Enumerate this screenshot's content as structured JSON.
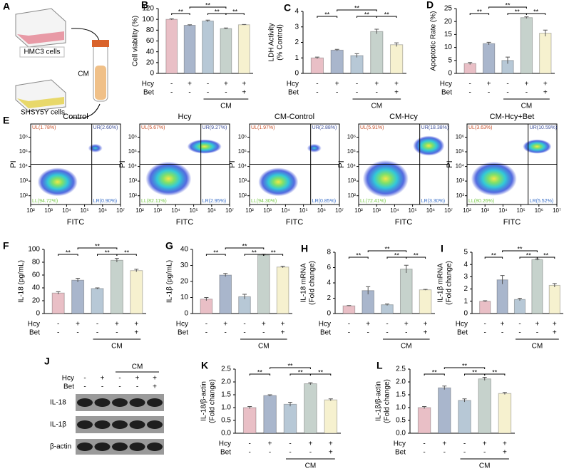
{
  "panel_a": {
    "panel": "A",
    "top_cells": "HMC3 cells",
    "medium": "CM",
    "bottom_cells": "SHSY5Y cells"
  },
  "chart_data": [
    {
      "type": "bar",
      "panel": "B",
      "ylabel": [
        "Cell viability (%)"
      ],
      "categories": [
        null,
        null,
        null,
        null,
        null
      ],
      "values": [
        100,
        89,
        97,
        83,
        90
      ],
      "errors": [
        1,
        1,
        1.5,
        1,
        0.5
      ],
      "colors": [
        "#e9bfc6",
        "#a9b6cc",
        "#b7c8d6",
        "#c6d2cc",
        "#f6f1cf"
      ],
      "ylim": [
        0,
        120
      ],
      "yticks": [
        0,
        20,
        40,
        60,
        80,
        100,
        120
      ],
      "annotations": [
        {
          "text": "**",
          "bars": [
            0,
            1
          ]
        },
        {
          "text": "**",
          "bars": [
            1,
            3
          ]
        },
        {
          "text": "**",
          "bars": [
            2,
            3
          ]
        },
        {
          "text": "**",
          "bars": [
            3,
            4
          ]
        }
      ],
      "conditions": [
        {
          "name": "Hcy",
          "signs": [
            "-",
            "+",
            "-",
            "+",
            "+"
          ]
        },
        {
          "name": "Bet",
          "signs": [
            "-",
            "-",
            "-",
            "-",
            "+"
          ]
        }
      ],
      "group": "CM"
    },
    {
      "type": "bar",
      "panel": "C",
      "ylabel": [
        "LDH Activity",
        "(% Control)"
      ],
      "categories": [
        null,
        null,
        null,
        null,
        null
      ],
      "values": [
        1.0,
        1.5,
        1.15,
        2.7,
        1.85
      ],
      "errors": [
        0.05,
        0.05,
        0.12,
        0.15,
        0.12
      ],
      "colors": [
        "#e9bfc6",
        "#a9b6cc",
        "#b7c8d6",
        "#c6d2cc",
        "#f6f1cf"
      ],
      "ylim": [
        0,
        4
      ],
      "yticks": [
        0,
        1,
        2,
        3,
        4
      ],
      "annotations": [
        {
          "text": "**",
          "bars": [
            0,
            1
          ]
        },
        {
          "text": "**",
          "bars": [
            1,
            3
          ]
        },
        {
          "text": "**",
          "bars": [
            2,
            3
          ]
        },
        {
          "text": "**",
          "bars": [
            3,
            4
          ]
        }
      ],
      "conditions": [
        {
          "name": "Hcy",
          "signs": [
            "-",
            "+",
            "-",
            "+",
            "+"
          ]
        },
        {
          "name": "Bet",
          "signs": [
            "-",
            "-",
            "-",
            "-",
            "+"
          ]
        }
      ],
      "group": "CM"
    },
    {
      "type": "bar",
      "panel": "D",
      "ylabel": [
        "Apoptotic Rate (%)"
      ],
      "categories": [
        null,
        null,
        null,
        null,
        null
      ],
      "values": [
        3.8,
        11.5,
        5,
        21.5,
        15.5
      ],
      "errors": [
        0.4,
        0.5,
        1.3,
        0.3,
        1.2
      ],
      "colors": [
        "#e9bfc6",
        "#a9b6cc",
        "#b7c8d6",
        "#c6d2cc",
        "#f6f1cf"
      ],
      "ylim": [
        0,
        25
      ],
      "yticks": [
        0,
        5,
        10,
        15,
        20,
        25
      ],
      "annotations": [
        {
          "text": "**",
          "bars": [
            0,
            1
          ]
        },
        {
          "text": "**",
          "bars": [
            1,
            3
          ]
        },
        {
          "text": "**",
          "bars": [
            2,
            3
          ]
        },
        {
          "text": "**",
          "bars": [
            3,
            4
          ]
        }
      ],
      "conditions": [
        {
          "name": "Hcy",
          "signs": [
            "-",
            "+",
            "-",
            "+",
            "+"
          ]
        },
        {
          "name": "Bet",
          "signs": [
            "-",
            "-",
            "-",
            "-",
            "+"
          ]
        }
      ],
      "group": "CM"
    },
    {
      "type": "bar",
      "panel": "F",
      "ylabel": [
        "IL-18 (pg/mL)"
      ],
      "categories": [
        null,
        null,
        null,
        null,
        null
      ],
      "values": [
        32,
        52,
        39,
        83,
        67
      ],
      "errors": [
        2,
        3,
        1,
        3,
        2
      ],
      "colors": [
        "#e9bfc6",
        "#a9b6cc",
        "#b7c8d6",
        "#c6d2cc",
        "#f6f1cf"
      ],
      "ylim": [
        0,
        100
      ],
      "yticks": [
        0,
        20,
        40,
        60,
        80,
        100
      ],
      "annotations": [
        {
          "text": "**",
          "bars": [
            0,
            1
          ]
        },
        {
          "text": "**",
          "bars": [
            1,
            3
          ]
        },
        {
          "text": "**",
          "bars": [
            2,
            3
          ]
        },
        {
          "text": "**",
          "bars": [
            3,
            4
          ]
        }
      ],
      "conditions": [
        {
          "name": "Hcy",
          "signs": [
            "-",
            "+",
            "-",
            "+",
            "+"
          ]
        },
        {
          "name": "Bet",
          "signs": [
            "-",
            "-",
            "-",
            "-",
            "+"
          ]
        }
      ],
      "group": "CM"
    },
    {
      "type": "bar",
      "panel": "G",
      "ylabel": [
        "IL-1β (pg/mL)"
      ],
      "categories": [
        null,
        null,
        null,
        null,
        null
      ],
      "values": [
        9,
        24,
        10.5,
        36.5,
        29
      ],
      "errors": [
        1,
        1,
        1.5,
        0.5,
        0.5
      ],
      "colors": [
        "#e9bfc6",
        "#a9b6cc",
        "#b7c8d6",
        "#c6d2cc",
        "#f6f1cf"
      ],
      "ylim": [
        0,
        40
      ],
      "yticks": [
        0,
        10,
        20,
        30,
        40
      ],
      "annotations": [
        {
          "text": "**",
          "bars": [
            0,
            1
          ]
        },
        {
          "text": "**",
          "bars": [
            1,
            3
          ]
        },
        {
          "text": "**",
          "bars": [
            2,
            3
          ]
        },
        {
          "text": "**",
          "bars": [
            3,
            4
          ]
        }
      ],
      "conditions": [
        {
          "name": "Hcy",
          "signs": [
            "-",
            "+",
            "-",
            "+",
            "+"
          ]
        },
        {
          "name": "Bet",
          "signs": [
            "-",
            "-",
            "-",
            "-",
            "+"
          ]
        }
      ],
      "group": "CM"
    },
    {
      "type": "bar",
      "panel": "H",
      "ylabel": [
        "IL-18 mRNA",
        "(Fold change)"
      ],
      "categories": [
        null,
        null,
        null,
        null,
        null
      ],
      "values": [
        1,
        3,
        1.15,
        5.8,
        3.1
      ],
      "errors": [
        0.05,
        0.5,
        0.1,
        0.5,
        0.05
      ],
      "colors": [
        "#e9bfc6",
        "#a9b6cc",
        "#b7c8d6",
        "#c6d2cc",
        "#f6f1cf"
      ],
      "ylim": [
        0,
        8
      ],
      "yticks": [
        0,
        2,
        4,
        6,
        8
      ],
      "annotations": [
        {
          "text": "**",
          "bars": [
            0,
            1
          ]
        },
        {
          "text": "**",
          "bars": [
            1,
            3
          ]
        },
        {
          "text": "**",
          "bars": [
            2,
            3
          ]
        },
        {
          "text": "**",
          "bars": [
            3,
            4
          ]
        }
      ],
      "conditions": [
        {
          "name": "Hcy",
          "signs": [
            "-",
            "+",
            "-",
            "+",
            "+"
          ]
        },
        {
          "name": "Bet",
          "signs": [
            "-",
            "-",
            "-",
            "-",
            "+"
          ]
        }
      ],
      "group": "CM"
    },
    {
      "type": "bar",
      "panel": "I",
      "ylabel": [
        "IL-1β mRNA",
        "(Fold change)"
      ],
      "categories": [
        null,
        null,
        null,
        null,
        null
      ],
      "values": [
        1,
        2.75,
        1.15,
        4.4,
        2.3
      ],
      "errors": [
        0.05,
        0.35,
        0.1,
        0.05,
        0.15
      ],
      "colors": [
        "#e9bfc6",
        "#a9b6cc",
        "#b7c8d6",
        "#c6d2cc",
        "#f6f1cf"
      ],
      "ylim": [
        0,
        5
      ],
      "yticks": [
        0,
        1,
        2,
        3,
        4,
        5
      ],
      "annotations": [
        {
          "text": "**",
          "bars": [
            0,
            1
          ]
        },
        {
          "text": "**",
          "bars": [
            1,
            3
          ]
        },
        {
          "text": "**",
          "bars": [
            2,
            3
          ]
        },
        {
          "text": "**",
          "bars": [
            3,
            4
          ]
        }
      ],
      "conditions": [
        {
          "name": "Hcy",
          "signs": [
            "-",
            "+",
            "-",
            "+",
            "+"
          ]
        },
        {
          "name": "Bet",
          "signs": [
            "-",
            "-",
            "-",
            "-",
            "+"
          ]
        }
      ],
      "group": "CM"
    },
    {
      "type": "bar",
      "panel": "K",
      "ylabel": [
        "IL-18/β-actin",
        "(Fold change)"
      ],
      "categories": [
        null,
        null,
        null,
        null,
        null
      ],
      "values": [
        1.0,
        1.47,
        1.13,
        1.93,
        1.3
      ],
      "errors": [
        0.04,
        0.03,
        0.08,
        0.04,
        0.04
      ],
      "colors": [
        "#e9bfc6",
        "#a9b6cc",
        "#b7c8d6",
        "#c6d2cc",
        "#f6f1cf"
      ],
      "ylim": [
        0,
        2.5
      ],
      "yticks": [
        {
          "value": 0,
          "label": "0.0"
        },
        0.5,
        {
          "value": 1,
          "label": "1.0"
        },
        1.5,
        {
          "value": 2,
          "label": "2.0"
        },
        2.5
      ],
      "annotations": [
        {
          "text": "**",
          "bars": [
            0,
            1
          ]
        },
        {
          "text": "**",
          "bars": [
            1,
            3
          ]
        },
        {
          "text": "**",
          "bars": [
            2,
            3
          ]
        },
        {
          "text": "**",
          "bars": [
            3,
            4
          ]
        }
      ],
      "conditions": [
        {
          "name": "Hcy",
          "signs": [
            "-",
            "+",
            "-",
            "+",
            "+"
          ]
        },
        {
          "name": "Bet",
          "signs": [
            "-",
            "-",
            "-",
            "-",
            "+"
          ]
        }
      ],
      "group": "CM"
    },
    {
      "type": "bar",
      "panel": "L",
      "ylabel": [
        "IL-1β/β-actin",
        "(Fold change)"
      ],
      "categories": [
        null,
        null,
        null,
        null,
        null
      ],
      "values": [
        1.0,
        1.77,
        1.28,
        2.12,
        1.55
      ],
      "errors": [
        0.04,
        0.07,
        0.06,
        0.06,
        0.04
      ],
      "colors": [
        "#e9bfc6",
        "#a9b6cc",
        "#b7c8d6",
        "#c6d2cc",
        "#f6f1cf"
      ],
      "ylim": [
        0,
        2.5
      ],
      "yticks": [
        {
          "value": 0,
          "label": "0.0"
        },
        0.5,
        {
          "value": 1,
          "label": "1.0"
        },
        1.5,
        {
          "value": 2,
          "label": "2.0"
        },
        2.5
      ],
      "annotations": [
        {
          "text": "**",
          "bars": [
            0,
            1
          ]
        },
        {
          "text": "**",
          "bars": [
            1,
            3
          ]
        },
        {
          "text": "**",
          "bars": [
            2,
            3
          ]
        },
        {
          "text": "**",
          "bars": [
            3,
            4
          ]
        }
      ],
      "conditions": [
        {
          "name": "Hcy",
          "signs": [
            "-",
            "+",
            "-",
            "+",
            "+"
          ]
        },
        {
          "name": "Bet",
          "signs": [
            "-",
            "-",
            "-",
            "-",
            "+"
          ]
        }
      ],
      "group": "CM"
    }
  ],
  "flow_cytometry": {
    "panel": "E",
    "xlabel": "FITC",
    "ylabel": "PI",
    "xticks": [
      "10²",
      "10³",
      "10⁴",
      "10⁵",
      "10⁶",
      "10⁷"
    ],
    "yticks": [
      "10²",
      "10³",
      "10⁴",
      "10⁵",
      "10⁶"
    ],
    "panels": [
      {
        "title": "Control",
        "UL": "UL(1.78%)",
        "UR": "UR(2.60%)",
        "LL": "LL(94.72%)",
        "LR": "LR(0.90%)"
      },
      {
        "title": "Hcy",
        "UL": "UL(5.67%)",
        "UR": "UR(9.27%)",
        "LL": "LL(82.11%)",
        "LR": "LR(2.95%)"
      },
      {
        "title": "CM-Control",
        "UL": "UL(1.97%)",
        "UR": "UR(2.88%)",
        "LL": "LL(94.30%)",
        "LR": "LR(0.85%)"
      },
      {
        "title": "CM-Hcy",
        "UL": "UL(5.91%)",
        "UR": "UR(18.38%)",
        "LL": "LL(72.41%)",
        "LR": "LR(3.30%)"
      },
      {
        "title": "CM-Hcy+Bet",
        "UL": "UL(3.63%)",
        "UR": "UR(10.59%)",
        "LL": "LL(80.26%)",
        "LR": "LR(5.52%)"
      }
    ]
  },
  "western_blot": {
    "panel": "J",
    "conditions": [
      {
        "name": "Hcy",
        "signs": [
          "-",
          "+",
          "-",
          "+",
          "+"
        ]
      },
      {
        "name": "Bet",
        "signs": [
          "-",
          "-",
          "-",
          "-",
          "+"
        ]
      }
    ],
    "group": "CM",
    "bands": [
      "IL-18",
      "IL-1β",
      "β-actin"
    ]
  }
}
